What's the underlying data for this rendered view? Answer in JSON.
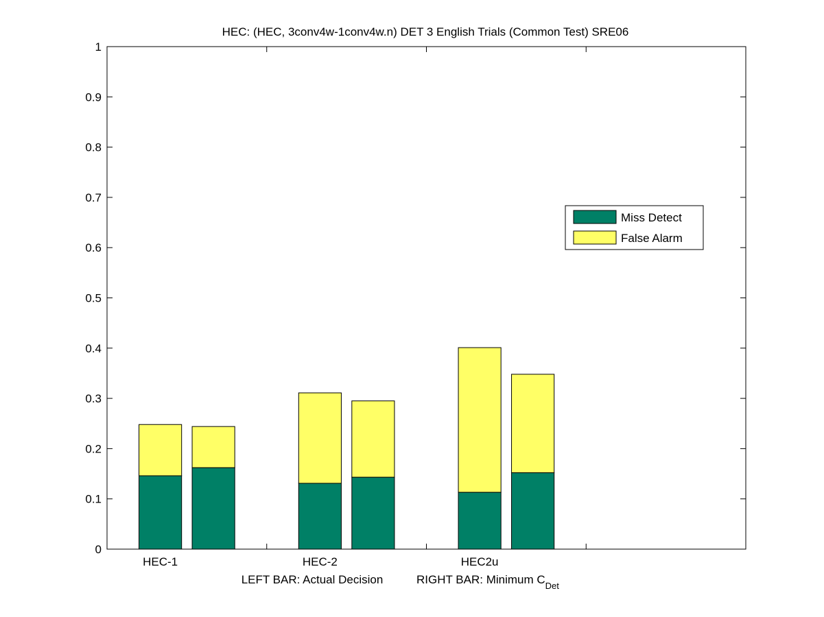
{
  "chart_data": {
    "type": "bar",
    "stacked": true,
    "title": "HEC: (HEC, 3conv4w-1conv4w.n) DET 3 English Trials (Common Test) SRE06",
    "xlabel": {
      "left": "LEFT BAR: Actual Decision",
      "right_prefix": "RIGHT BAR: Minimum C",
      "right_subscript": "Det"
    },
    "ylabel": "",
    "ylim": [
      0,
      1
    ],
    "yticks": [
      0,
      0.1,
      0.2,
      0.3,
      0.4,
      0.5,
      0.6,
      0.7,
      0.8,
      0.9,
      1
    ],
    "ytick_labels": [
      "0",
      "0.1",
      "0.2",
      "0.3",
      "0.4",
      "0.5",
      "0.6",
      "0.7",
      "0.8",
      "0.9",
      "1"
    ],
    "group_slots": 4,
    "categories": [
      "HEC-1",
      "HEC-2",
      "HEC2u"
    ],
    "bars_per_group": [
      "LEFT BAR: Actual Decision",
      "RIGHT BAR: Minimum CDet"
    ],
    "series": [
      {
        "name": "Miss Detect",
        "color": "#008066",
        "values": [
          [
            0.146,
            0.162
          ],
          [
            0.131,
            0.143
          ],
          [
            0.113,
            0.152
          ]
        ]
      },
      {
        "name": "False Alarm",
        "color": "#FFFF66",
        "values": [
          [
            0.102,
            0.082
          ],
          [
            0.18,
            0.152
          ],
          [
            0.288,
            0.196
          ]
        ]
      }
    ],
    "totals": [
      [
        0.248,
        0.244
      ],
      [
        0.311,
        0.295
      ],
      [
        0.401,
        0.348
      ]
    ],
    "legend": {
      "placement": "right",
      "entries": [
        "Miss Detect",
        "False Alarm"
      ]
    },
    "grid": false
  }
}
